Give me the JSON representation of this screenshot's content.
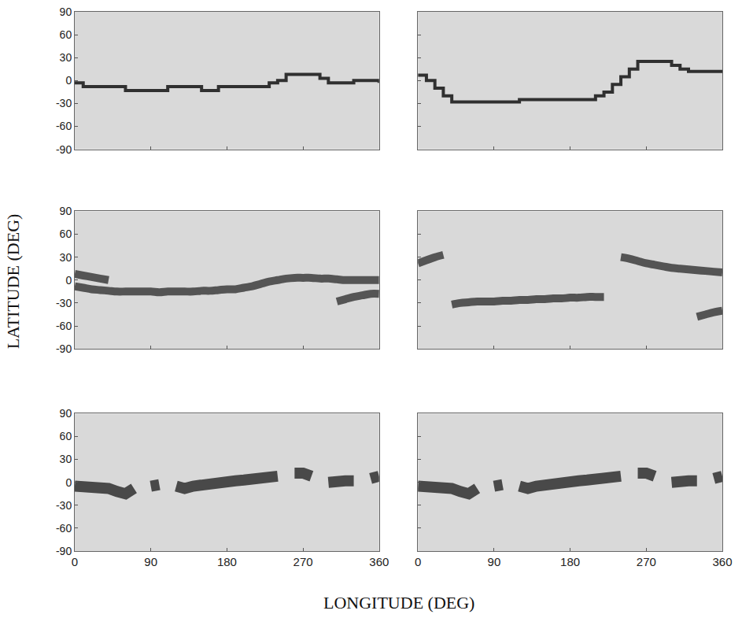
{
  "x_label": "LONGITUDE (DEG)",
  "y_label": "LATITUDE (DEG)",
  "chart_data": [
    {
      "type": "line",
      "line_style": "steps",
      "tick_labels": "y",
      "x": [
        0,
        10,
        20,
        30,
        40,
        50,
        60,
        70,
        80,
        90,
        100,
        110,
        120,
        130,
        140,
        150,
        160,
        170,
        180,
        190,
        200,
        210,
        220,
        230,
        240,
        250,
        260,
        270,
        280,
        290,
        300,
        310,
        320,
        330,
        340,
        350,
        360
      ],
      "series": [
        {
          "color": "#303030",
          "values": [
            -3,
            -8,
            -8,
            -8,
            -8,
            -8,
            -13,
            -13,
            -13,
            -13,
            -13,
            -8,
            -8,
            -8,
            -8,
            -13,
            -13,
            -8,
            -8,
            -8,
            -8,
            -8,
            -8,
            -3,
            0,
            8,
            8,
            8,
            8,
            3,
            -3,
            -3,
            -3,
            0,
            0,
            0,
            -3
          ]
        }
      ],
      "xlim": [
        0,
        360
      ],
      "ylim": [
        -90,
        90
      ],
      "xticks": [
        0,
        90,
        180,
        270,
        360
      ],
      "yticks": [
        -90,
        -60,
        -30,
        0,
        30,
        60,
        90
      ]
    },
    {
      "type": "line",
      "line_style": "steps",
      "tick_labels": false,
      "x": [
        0,
        10,
        20,
        30,
        40,
        50,
        60,
        70,
        80,
        90,
        100,
        110,
        120,
        130,
        140,
        150,
        160,
        170,
        180,
        190,
        200,
        210,
        220,
        230,
        240,
        250,
        260,
        270,
        280,
        290,
        300,
        310,
        320,
        330,
        340,
        350,
        360
      ],
      "series": [
        {
          "color": "#303030",
          "values": [
            7,
            0,
            -10,
            -20,
            -28,
            -28,
            -28,
            -28,
            -28,
            -28,
            -28,
            -28,
            -25,
            -25,
            -25,
            -25,
            -25,
            -25,
            -25,
            -25,
            -25,
            -20,
            -15,
            -5,
            5,
            15,
            25,
            25,
            25,
            25,
            20,
            15,
            12,
            12,
            12,
            12,
            12
          ]
        }
      ],
      "xlim": [
        0,
        360
      ],
      "ylim": [
        -90,
        90
      ],
      "xticks": [
        0,
        90,
        180,
        270,
        360
      ],
      "yticks": [
        -90,
        -60,
        -30,
        0,
        30,
        60,
        90
      ]
    },
    {
      "type": "line",
      "line_style": "smeared",
      "tick_labels": "y",
      "x": [
        0,
        10,
        20,
        30,
        40,
        50,
        60,
        70,
        80,
        90,
        100,
        110,
        120,
        130,
        140,
        150,
        160,
        170,
        180,
        190,
        200,
        210,
        220,
        230,
        240,
        250,
        260,
        270,
        280,
        290,
        300,
        310,
        320,
        330,
        340,
        350,
        360
      ],
      "series": [
        {
          "color": "#303030",
          "values": [
            -8,
            -10,
            -12,
            -13,
            -14,
            -15,
            -15,
            -15,
            -15,
            -15,
            -16,
            -15,
            -15,
            -15,
            -15,
            -14,
            -14,
            -13,
            -12,
            -12,
            -10,
            -8,
            -5,
            -2,
            0,
            2,
            3,
            3,
            3,
            2,
            2,
            1,
            0,
            0,
            0,
            0,
            0
          ]
        },
        {
          "color": "#303030",
          "values": [
            8,
            6,
            4,
            2,
            0,
            null,
            null,
            null,
            null,
            null,
            null,
            null,
            null,
            null,
            null,
            null,
            null,
            null,
            null,
            null,
            null,
            null,
            null,
            null,
            null,
            null,
            null,
            null,
            null,
            null,
            null,
            null,
            null,
            null,
            null,
            null,
            null
          ]
        },
        {
          "color": "#303030",
          "values": [
            null,
            null,
            null,
            null,
            null,
            null,
            null,
            null,
            null,
            null,
            null,
            null,
            null,
            null,
            null,
            null,
            null,
            null,
            null,
            null,
            null,
            null,
            null,
            null,
            null,
            null,
            null,
            null,
            null,
            null,
            null,
            -28,
            -25,
            -22,
            -20,
            -18,
            -18
          ]
        }
      ],
      "xlim": [
        0,
        360
      ],
      "ylim": [
        -90,
        90
      ],
      "xticks": [
        0,
        90,
        180,
        270,
        360
      ],
      "yticks": [
        -90,
        -60,
        -30,
        0,
        30,
        60,
        90
      ]
    },
    {
      "type": "line",
      "line_style": "smeared",
      "tick_labels": false,
      "x": [
        0,
        10,
        20,
        30,
        40,
        50,
        60,
        70,
        80,
        90,
        100,
        110,
        120,
        130,
        140,
        150,
        160,
        170,
        180,
        190,
        200,
        210,
        220,
        230,
        240,
        250,
        260,
        270,
        280,
        290,
        300,
        310,
        320,
        330,
        340,
        350,
        360
      ],
      "series": [
        {
          "color": "#303030",
          "values": [
            22,
            26,
            30,
            33,
            null,
            null,
            null,
            null,
            null,
            null,
            null,
            null,
            null,
            null,
            null,
            null,
            null,
            null,
            null,
            null,
            null,
            null,
            null,
            null,
            null,
            null,
            null,
            null,
            null,
            null,
            null,
            null,
            null,
            null,
            null,
            null,
            null
          ]
        },
        {
          "color": "#303030",
          "values": [
            null,
            null,
            null,
            null,
            -32,
            -30,
            -29,
            -28,
            -28,
            -28,
            -27,
            -27,
            -26,
            -26,
            -25,
            -25,
            -24,
            -24,
            -23,
            -23,
            -22,
            -22,
            -22,
            null,
            null,
            null,
            null,
            null,
            null,
            null,
            null,
            null,
            null,
            null,
            null,
            null,
            null
          ]
        },
        {
          "color": "#303030",
          "values": [
            null,
            null,
            null,
            null,
            null,
            null,
            null,
            null,
            null,
            null,
            null,
            null,
            null,
            null,
            null,
            null,
            null,
            null,
            null,
            null,
            null,
            null,
            null,
            null,
            30,
            28,
            25,
            22,
            20,
            18,
            16,
            15,
            14,
            13,
            12,
            11,
            10
          ]
        },
        {
          "color": "#303030",
          "values": [
            null,
            null,
            null,
            null,
            null,
            null,
            null,
            null,
            null,
            null,
            null,
            null,
            null,
            null,
            null,
            null,
            null,
            null,
            null,
            null,
            null,
            null,
            null,
            null,
            null,
            null,
            null,
            null,
            null,
            null,
            null,
            null,
            null,
            -48,
            -45,
            -42,
            -40
          ]
        }
      ],
      "xlim": [
        0,
        360
      ],
      "ylim": [
        -90,
        90
      ],
      "xticks": [
        0,
        90,
        180,
        270,
        360
      ],
      "yticks": [
        -90,
        -60,
        -30,
        0,
        30,
        60,
        90
      ]
    },
    {
      "type": "line",
      "line_style": "band",
      "x": [
        0,
        10,
        20,
        30,
        40,
        50,
        60,
        70,
        80,
        90,
        100,
        110,
        120,
        130,
        140,
        150,
        160,
        170,
        180,
        190,
        200,
        210,
        220,
        230,
        240,
        250,
        260,
        270,
        280,
        290,
        300,
        310,
        320,
        330,
        340,
        350,
        360
      ],
      "series": [
        {
          "color": "#303030",
          "values": [
            -5,
            -5,
            -5,
            -5,
            -8,
            -12,
            -15,
            -8,
            null,
            -5,
            -3,
            null,
            -5,
            -8,
            -5,
            -3,
            -3,
            0,
            0,
            2,
            3,
            5,
            5,
            8,
            8,
            null,
            12,
            12,
            8,
            null,
            0,
            2,
            2,
            2,
            null,
            5,
            8
          ]
        }
      ],
      "xlim": [
        0,
        360
      ],
      "ylim": [
        -90,
        90
      ],
      "xticks": [
        0,
        90,
        180,
        270,
        360
      ],
      "yticks": [
        -90,
        -60,
        -30,
        0,
        30,
        60,
        90
      ]
    },
    {
      "type": "line",
      "line_style": "band",
      "tick_labels": "x",
      "x": [
        0,
        10,
        20,
        30,
        40,
        50,
        60,
        70,
        80,
        90,
        100,
        110,
        120,
        130,
        140,
        150,
        160,
        170,
        180,
        190,
        200,
        210,
        220,
        230,
        240,
        250,
        260,
        270,
        280,
        290,
        300,
        310,
        320,
        330,
        340,
        350,
        360
      ],
      "series": [
        {
          "color": "#303030",
          "values": [
            -5,
            -5,
            -5,
            -5,
            -8,
            -12,
            -15,
            -8,
            null,
            -5,
            -3,
            null,
            -5,
            -8,
            -5,
            -3,
            -3,
            0,
            0,
            2,
            3,
            5,
            5,
            8,
            8,
            null,
            12,
            12,
            8,
            null,
            0,
            2,
            2,
            2,
            null,
            5,
            8
          ]
        }
      ],
      "xlim": [
        0,
        360
      ],
      "ylim": [
        -90,
        90
      ],
      "xticks": [
        0,
        90,
        180,
        270,
        360
      ],
      "yticks": [
        -90,
        -60,
        -30,
        0,
        30,
        60,
        90
      ]
    }
  ]
}
